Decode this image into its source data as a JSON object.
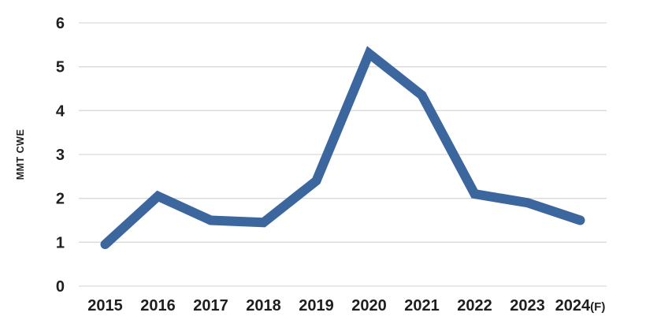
{
  "chart_data": {
    "type": "line",
    "categories": [
      "2015",
      "2016",
      "2017",
      "2018",
      "2019",
      "2020",
      "2021",
      "2022",
      "2023",
      "2024(F)"
    ],
    "values": [
      0.95,
      2.05,
      1.5,
      1.45,
      2.4,
      5.3,
      4.35,
      2.1,
      1.9,
      1.5
    ],
    "series_name": "",
    "title": "",
    "xlabel": "",
    "ylabel": "MMT CWE",
    "ylim": [
      0,
      6
    ],
    "ytick_step": 1,
    "yticks": [
      0,
      1,
      2,
      3,
      4,
      5,
      6
    ],
    "grid": true,
    "legend_position": "none",
    "colors": {
      "line": "#3b669e",
      "gridline": "#d9d9d9",
      "tick_label": "#1f1f1f",
      "axis_title": "#1f1f1f",
      "background": "#ffffff"
    }
  }
}
